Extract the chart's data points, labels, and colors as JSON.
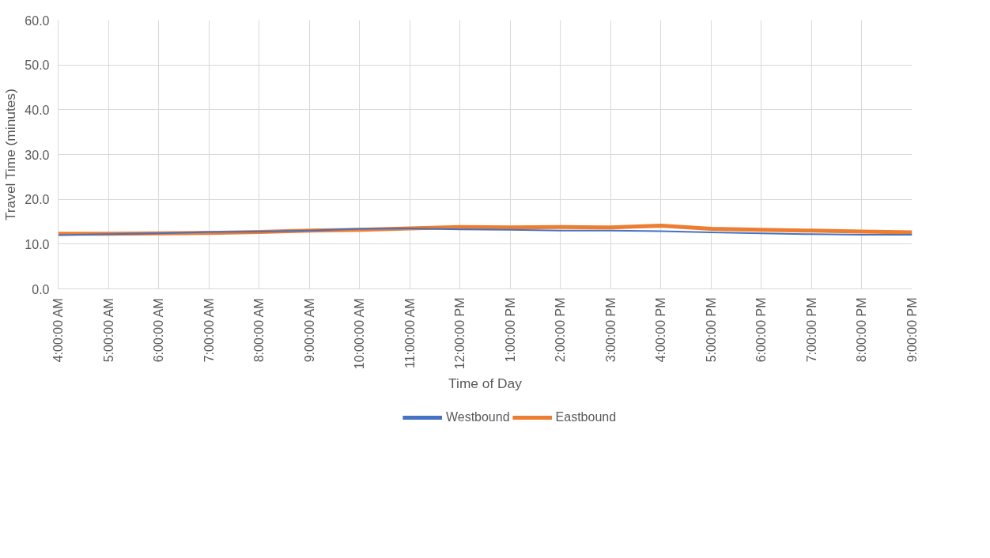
{
  "chart_data": {
    "type": "line",
    "xlabel": "Time of Day",
    "ylabel": "Travel Time (minutes)",
    "categories": [
      "4:00:00 AM",
      "5:00:00 AM",
      "6:00:00 AM",
      "7:00:00 AM",
      "8:00:00 AM",
      "9:00:00 AM",
      "10:00:00 AM",
      "11:00:00 AM",
      "12:00:00 PM",
      "1:00:00 PM",
      "2:00:00 PM",
      "3:00:00 PM",
      "4:00:00 PM",
      "5:00:00 PM",
      "6:00:00 PM",
      "7:00:00 PM",
      "8:00:00 PM",
      "9:00:00 PM"
    ],
    "series": [
      {
        "name": "Westbound",
        "color": "#4472c4",
        "values": [
          12.0,
          12.2,
          12.4,
          12.7,
          12.8,
          13.0,
          13.4,
          13.5,
          13.3,
          13.2,
          13.0,
          13.0,
          12.9,
          12.6,
          12.4,
          12.2,
          12.1,
          12.1
        ]
      },
      {
        "name": "Eastbound",
        "color": "#ed7d31",
        "values": [
          12.3,
          12.3,
          12.4,
          12.5,
          12.7,
          13.0,
          13.2,
          13.5,
          13.8,
          13.7,
          13.8,
          13.7,
          14.1,
          13.4,
          13.2,
          13.0,
          12.8,
          12.6
        ]
      }
    ],
    "ylim": [
      0,
      60
    ],
    "yticks": [
      {
        "value": 0,
        "label": "0.0"
      },
      {
        "value": 10,
        "label": "10.0"
      },
      {
        "value": 20,
        "label": "20.0"
      },
      {
        "value": 30,
        "label": "30.0"
      },
      {
        "value": 40,
        "label": "40.0"
      },
      {
        "value": 50,
        "label": "50.0"
      },
      {
        "value": 60,
        "label": "60.0"
      }
    ],
    "grid": true,
    "legend": "bottom",
    "marker": "none",
    "line_style": "solid"
  }
}
